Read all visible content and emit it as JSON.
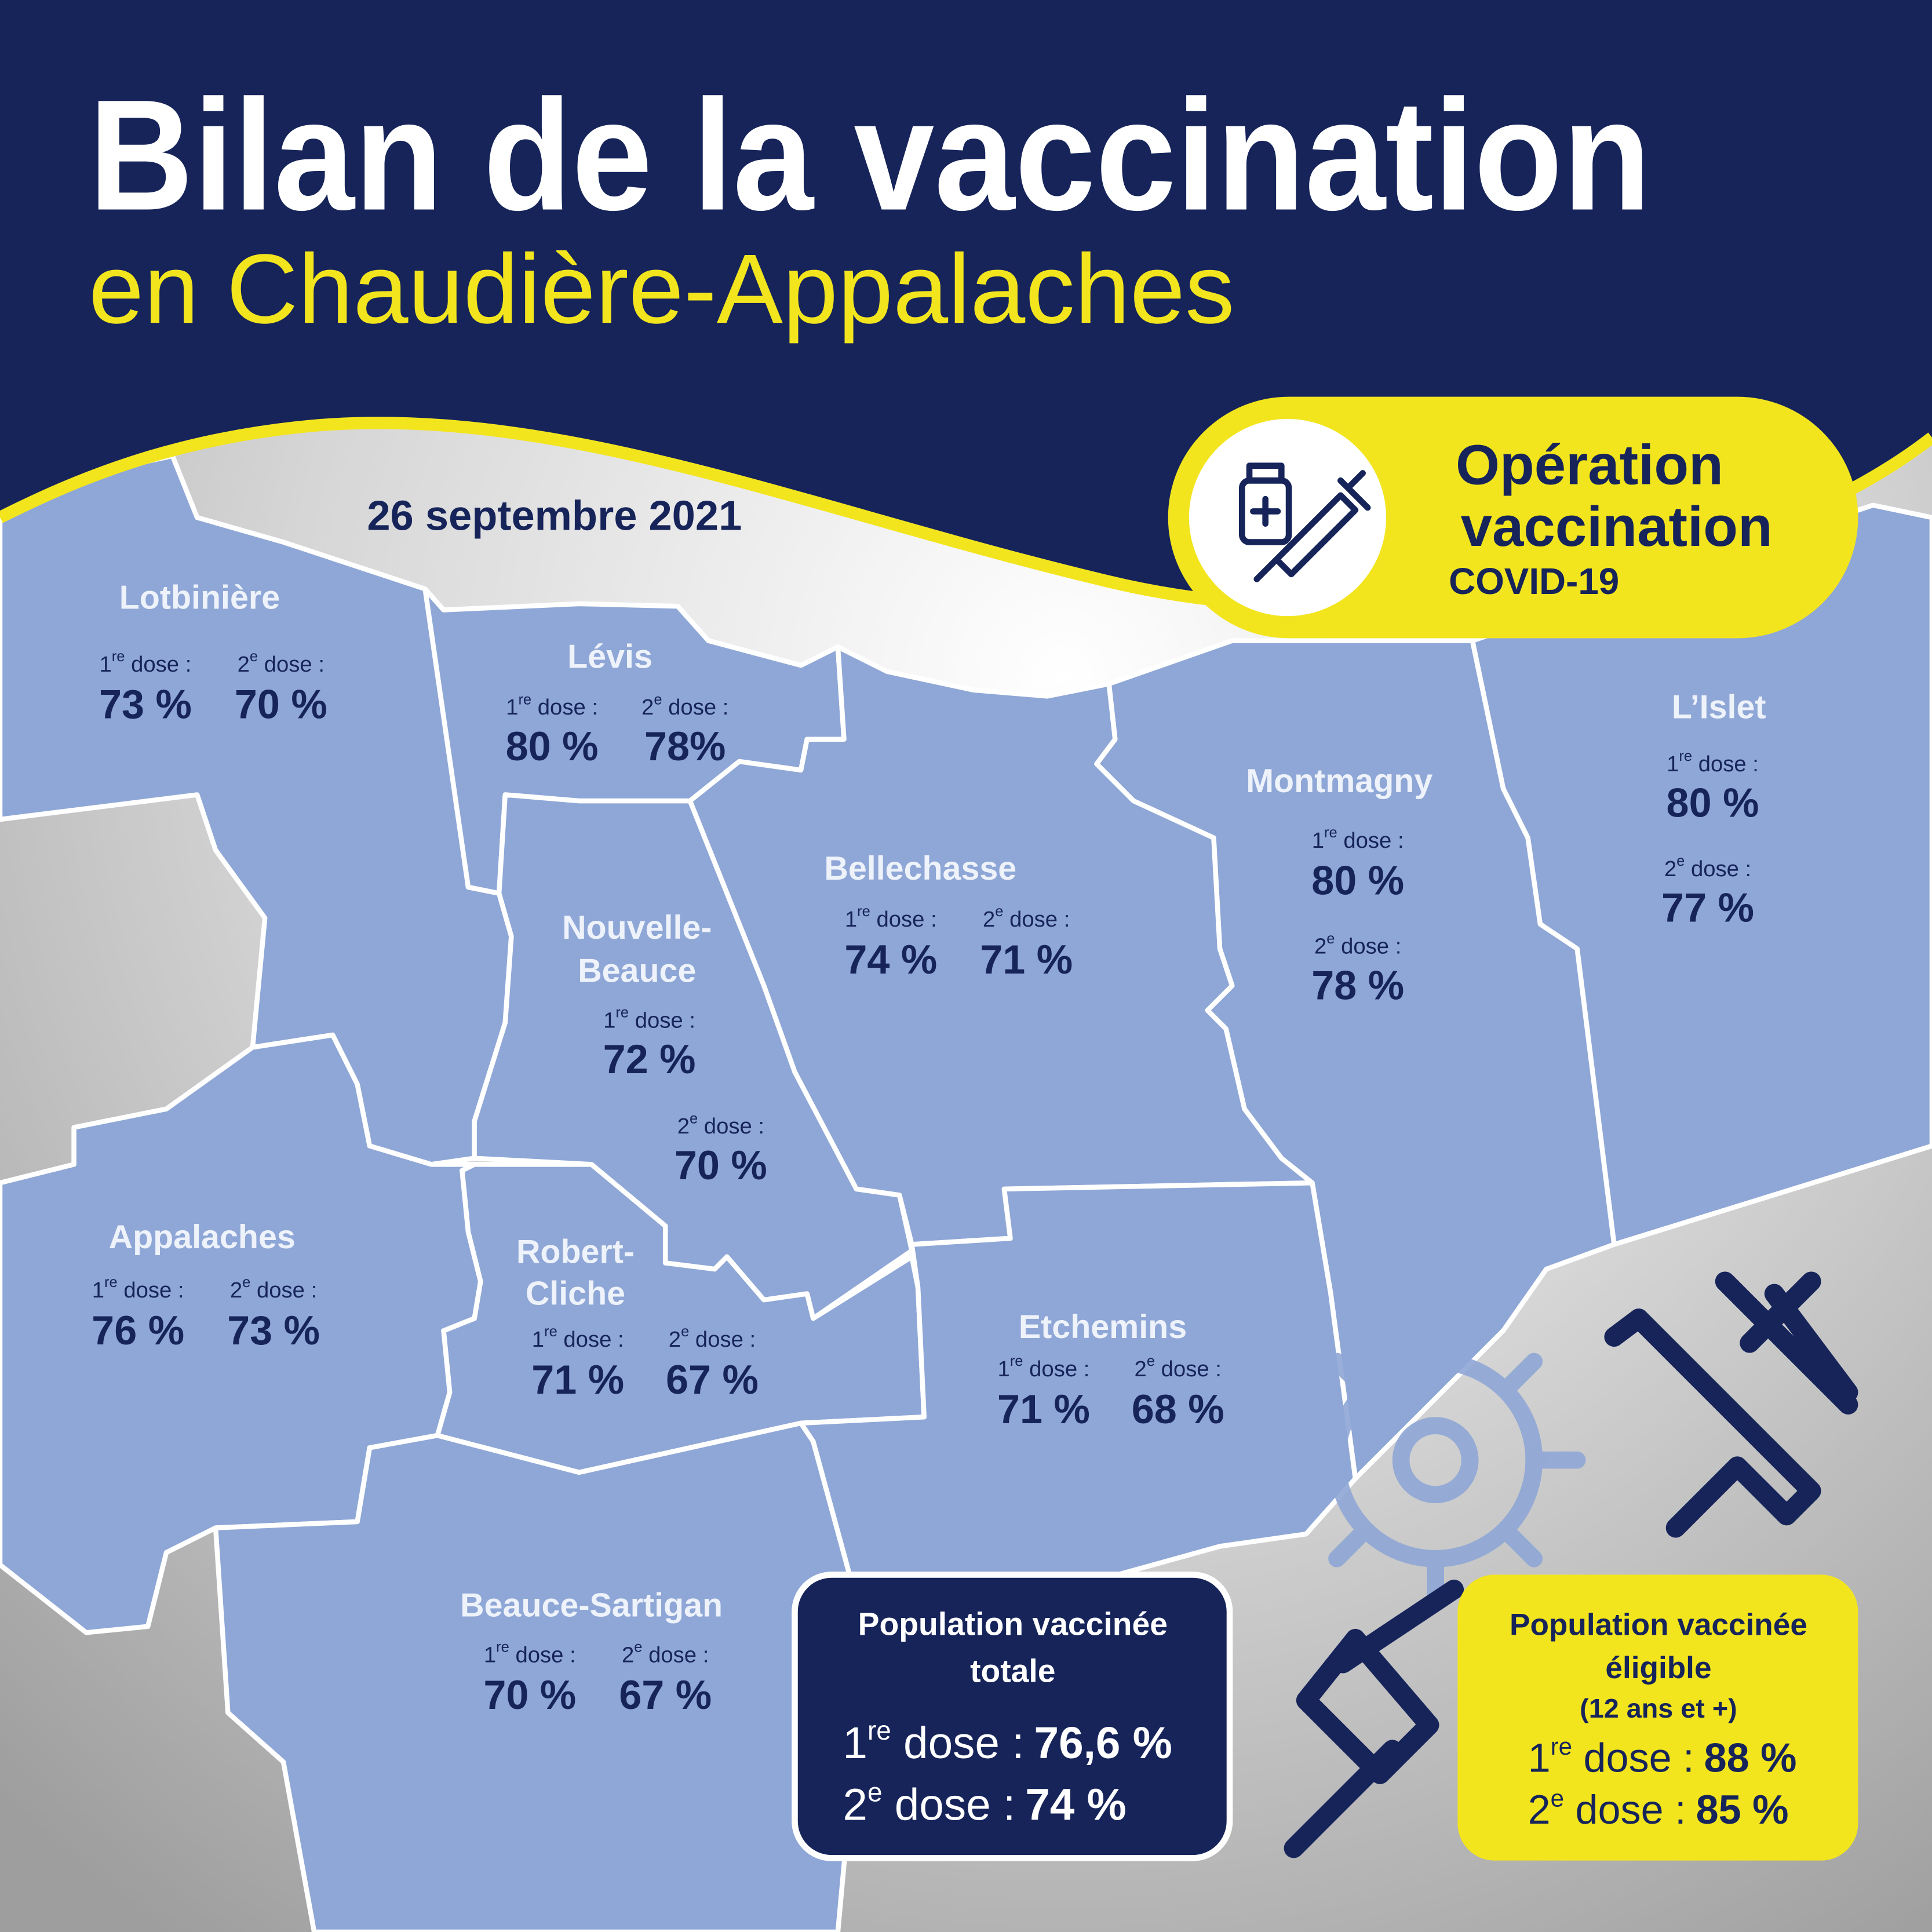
{
  "header": {
    "title": "Bilan de la vaccination",
    "subtitle": "en Chaudière-Appalaches"
  },
  "date": "26 septembre 2021",
  "badge": {
    "line1": "Opération",
    "line2": "vaccination",
    "line3": "COVID-19"
  },
  "dose_labels": {
    "first": {
      "number": "1",
      "suffix": "re",
      "text": " dose :"
    },
    "second": {
      "number": "2",
      "suffix": "e",
      "text": " dose :"
    }
  },
  "regions": [
    {
      "name": [
        "Lotbinière"
      ],
      "dose1": "73 %",
      "dose2": "70 %"
    },
    {
      "name": [
        "Lévis"
      ],
      "dose1": "80 %",
      "dose2": "78%"
    },
    {
      "name": [
        "Nouvelle-",
        "Beauce"
      ],
      "dose1": "72 %",
      "dose2": "70 %"
    },
    {
      "name": [
        "Bellechasse"
      ],
      "dose1": "74 %",
      "dose2": "71 %"
    },
    {
      "name": [
        "Montmagny"
      ],
      "dose1": "80 %",
      "dose2": "78 %"
    },
    {
      "name": [
        "L’Islet"
      ],
      "dose1": "80 %",
      "dose2": "77 %"
    },
    {
      "name": [
        "Appalaches"
      ],
      "dose1": "76 %",
      "dose2": "73 %"
    },
    {
      "name": [
        "Robert-",
        "Cliche"
      ],
      "dose1": "71 %",
      "dose2": "67 %"
    },
    {
      "name": [
        "Etchemins"
      ],
      "dose1": "71 %",
      "dose2": "68 %"
    },
    {
      "name": [
        "Beauce-Sartigan"
      ],
      "dose1": "70 %",
      "dose2": "67 %"
    }
  ],
  "total_box": {
    "title": [
      "Population vaccinée",
      "totale"
    ],
    "dose1": "76,6 %",
    "dose2": "74 %"
  },
  "eligible_box": {
    "title": [
      "Population vaccinée",
      "éligible",
      "(12 ans et +)"
    ],
    "dose1": "88 %",
    "dose2": "85 %"
  }
}
